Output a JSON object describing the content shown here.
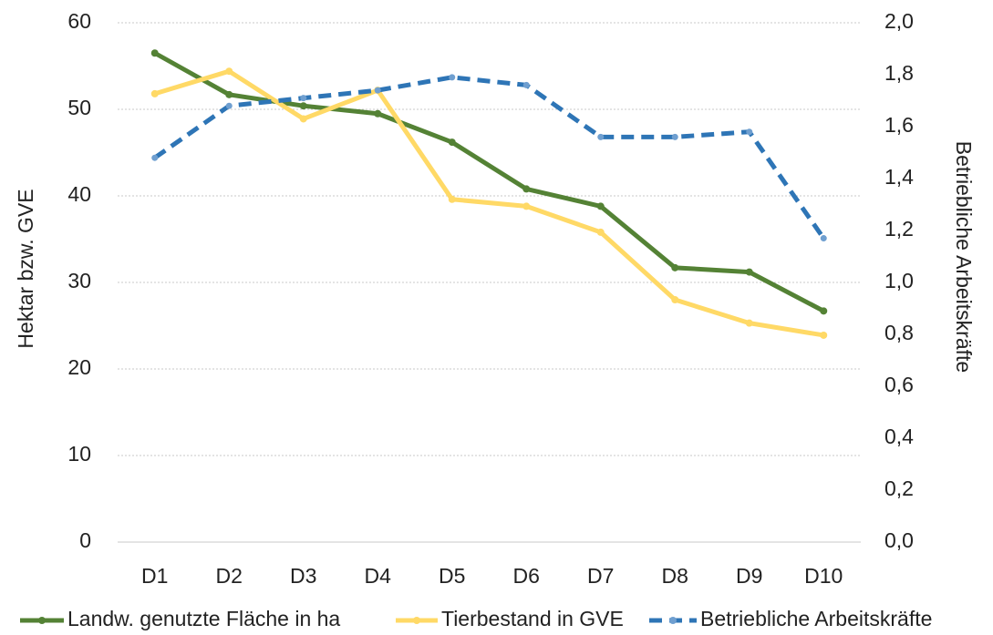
{
  "chart_data": {
    "type": "line",
    "categories": [
      "D1",
      "D2",
      "D3",
      "D4",
      "D5",
      "D6",
      "D7",
      "D8",
      "D9",
      "D10"
    ],
    "y_label": "Hektar bzw. GVE",
    "y2_label": "Betriebliche Arbeitskräfte",
    "ylim": [
      0,
      60
    ],
    "yticks": [
      0,
      10,
      20,
      30,
      40,
      50,
      60
    ],
    "y2lim": [
      0,
      2
    ],
    "y2ticks": [
      {
        "value": 0,
        "label": "0,0"
      },
      {
        "value": 0.2,
        "label": "0,2"
      },
      {
        "value": 0.4,
        "label": "0,4"
      },
      {
        "value": 0.6,
        "label": "0,6"
      },
      {
        "value": 0.8,
        "label": "0,8"
      },
      {
        "value": 1,
        "label": "1,0"
      },
      {
        "value": 1.2,
        "label": "1,2"
      },
      {
        "value": 1.4,
        "label": "1,4"
      },
      {
        "value": 1.6,
        "label": "1,6"
      },
      {
        "value": 1.8,
        "label": "1,8"
      },
      {
        "value": 2,
        "label": "2,0"
      }
    ],
    "grid": true,
    "legend": "bottom",
    "series": [
      {
        "name": "Landw. genutzte Fläche in ha",
        "color": "#548235",
        "values": [
          56.5,
          51.7,
          50.4,
          49.5,
          46.2,
          40.8,
          38.8,
          31.7,
          31.2,
          26.7
        ]
      },
      {
        "name": "Tierbestand in GVE",
        "color": "#ffd966",
        "values": [
          51.8,
          54.4,
          48.9,
          52.2,
          39.6,
          38.8,
          35.8,
          28.0,
          25.3,
          23.9
        ]
      },
      {
        "name": "Betriebliche Arbeitskräfte",
        "color": "#2e75b6",
        "axis": "y2",
        "dashed": true,
        "values": [
          1.48,
          1.68,
          1.71,
          1.74,
          1.79,
          1.76,
          1.56,
          1.56,
          1.58,
          1.17
        ]
      }
    ]
  }
}
